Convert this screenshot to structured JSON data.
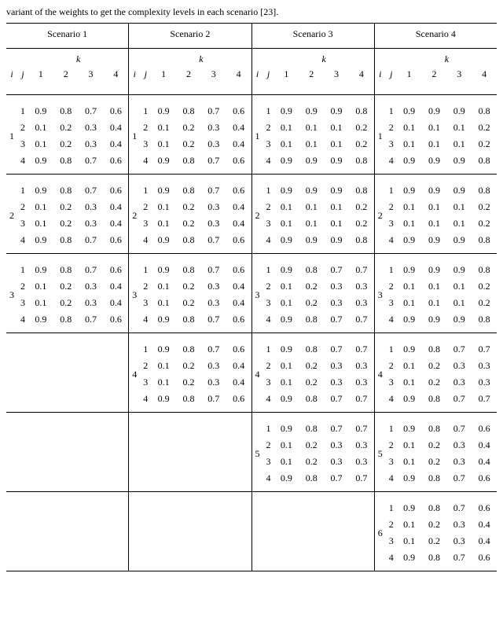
{
  "caption": "variant of the weights to get the complexity levels in each scenario [23].",
  "headers": {
    "i": "i",
    "j": "j",
    "k": "k",
    "k_italic": "k",
    "cols": [
      "1",
      "2",
      "3",
      "4"
    ]
  },
  "scenarios": [
    {
      "title": "Scenario 1",
      "max_i": 3,
      "blocks": [
        {
          "i": "1",
          "rows": [
            [
              "1",
              "0.9",
              "0.8",
              "0.7",
              "0.6"
            ],
            [
              "2",
              "0.1",
              "0.2",
              "0.3",
              "0.4"
            ],
            [
              "3",
              "0.1",
              "0.2",
              "0.3",
              "0.4"
            ],
            [
              "4",
              "0.9",
              "0.8",
              "0.7",
              "0.6"
            ]
          ]
        },
        {
          "i": "2",
          "rows": [
            [
              "1",
              "0.9",
              "0.8",
              "0.7",
              "0.6"
            ],
            [
              "2",
              "0.1",
              "0.2",
              "0.3",
              "0.4"
            ],
            [
              "3",
              "0.1",
              "0.2",
              "0.3",
              "0.4"
            ],
            [
              "4",
              "0.9",
              "0.8",
              "0.7",
              "0.6"
            ]
          ]
        },
        {
          "i": "3",
          "rows": [
            [
              "1",
              "0.9",
              "0.8",
              "0.7",
              "0.6"
            ],
            [
              "2",
              "0.1",
              "0.2",
              "0.3",
              "0.4"
            ],
            [
              "3",
              "0.1",
              "0.2",
              "0.3",
              "0.4"
            ],
            [
              "4",
              "0.9",
              "0.8",
              "0.7",
              "0.6"
            ]
          ]
        }
      ]
    },
    {
      "title": "Scenario 2",
      "max_i": 4,
      "blocks": [
        {
          "i": "1",
          "rows": [
            [
              "1",
              "0.9",
              "0.8",
              "0.7",
              "0.6"
            ],
            [
              "2",
              "0.1",
              "0.2",
              "0.3",
              "0.4"
            ],
            [
              "3",
              "0.1",
              "0.2",
              "0.3",
              "0.4"
            ],
            [
              "4",
              "0.9",
              "0.8",
              "0.7",
              "0.6"
            ]
          ]
        },
        {
          "i": "2",
          "rows": [
            [
              "1",
              "0.9",
              "0.8",
              "0.7",
              "0.6"
            ],
            [
              "2",
              "0.1",
              "0.2",
              "0.3",
              "0.4"
            ],
            [
              "3",
              "0.1",
              "0.2",
              "0.3",
              "0.4"
            ],
            [
              "4",
              "0.9",
              "0.8",
              "0.7",
              "0.6"
            ]
          ]
        },
        {
          "i": "3",
          "rows": [
            [
              "1",
              "0.9",
              "0.8",
              "0.7",
              "0.6"
            ],
            [
              "2",
              "0.1",
              "0.2",
              "0.3",
              "0.4"
            ],
            [
              "3",
              "0.1",
              "0.2",
              "0.3",
              "0.4"
            ],
            [
              "4",
              "0.9",
              "0.8",
              "0.7",
              "0.6"
            ]
          ]
        },
        {
          "i": "4",
          "rows": [
            [
              "1",
              "0.9",
              "0.8",
              "0.7",
              "0.6"
            ],
            [
              "2",
              "0.1",
              "0.2",
              "0.3",
              "0.4"
            ],
            [
              "3",
              "0.1",
              "0.2",
              "0.3",
              "0.4"
            ],
            [
              "4",
              "0.9",
              "0.8",
              "0.7",
              "0.6"
            ]
          ]
        }
      ]
    },
    {
      "title": "Scenario 3",
      "max_i": 5,
      "blocks": [
        {
          "i": "1",
          "rows": [
            [
              "1",
              "0.9",
              "0.9",
              "0.9",
              "0.8"
            ],
            [
              "2",
              "0.1",
              "0.1",
              "0.1",
              "0.2"
            ],
            [
              "3",
              "0.1",
              "0.1",
              "0.1",
              "0.2"
            ],
            [
              "4",
              "0.9",
              "0.9",
              "0.9",
              "0.8"
            ]
          ]
        },
        {
          "i": "2",
          "rows": [
            [
              "1",
              "0.9",
              "0.9",
              "0.9",
              "0.8"
            ],
            [
              "2",
              "0.1",
              "0.1",
              "0.1",
              "0.2"
            ],
            [
              "3",
              "0.1",
              "0.1",
              "0.1",
              "0.2"
            ],
            [
              "4",
              "0.9",
              "0.9",
              "0.9",
              "0.8"
            ]
          ]
        },
        {
          "i": "3",
          "rows": [
            [
              "1",
              "0.9",
              "0.8",
              "0.7",
              "0.7"
            ],
            [
              "2",
              "0.1",
              "0.2",
              "0.3",
              "0.3"
            ],
            [
              "3",
              "0.1",
              "0.2",
              "0.3",
              "0.3"
            ],
            [
              "4",
              "0.9",
              "0.8",
              "0.7",
              "0.7"
            ]
          ]
        },
        {
          "i": "4",
          "rows": [
            [
              "1",
              "0.9",
              "0.8",
              "0.7",
              "0.7"
            ],
            [
              "2",
              "0.1",
              "0.2",
              "0.3",
              "0.3"
            ],
            [
              "3",
              "0.1",
              "0.2",
              "0.3",
              "0.3"
            ],
            [
              "4",
              "0.9",
              "0.8",
              "0.7",
              "0.7"
            ]
          ]
        },
        {
          "i": "5",
          "rows": [
            [
              "1",
              "0.9",
              "0.8",
              "0.7",
              "0.7"
            ],
            [
              "2",
              "0.1",
              "0.2",
              "0.3",
              "0.3"
            ],
            [
              "3",
              "0.1",
              "0.2",
              "0.3",
              "0.3"
            ],
            [
              "4",
              "0.9",
              "0.8",
              "0.7",
              "0.7"
            ]
          ]
        }
      ]
    },
    {
      "title": "Scenario 4",
      "max_i": 6,
      "blocks": [
        {
          "i": "1",
          "rows": [
            [
              "1",
              "0.9",
              "0.9",
              "0.9",
              "0.8"
            ],
            [
              "2",
              "0.1",
              "0.1",
              "0.1",
              "0.2"
            ],
            [
              "3",
              "0.1",
              "0.1",
              "0.1",
              "0.2"
            ],
            [
              "4",
              "0.9",
              "0.9",
              "0.9",
              "0.8"
            ]
          ]
        },
        {
          "i": "2",
          "rows": [
            [
              "1",
              "0.9",
              "0.9",
              "0.9",
              "0.8"
            ],
            [
              "2",
              "0.1",
              "0.1",
              "0.1",
              "0.2"
            ],
            [
              "3",
              "0.1",
              "0.1",
              "0.1",
              "0.2"
            ],
            [
              "4",
              "0.9",
              "0.9",
              "0.9",
              "0.8"
            ]
          ]
        },
        {
          "i": "3",
          "rows": [
            [
              "1",
              "0.9",
              "0.9",
              "0.9",
              "0.8"
            ],
            [
              "2",
              "0.1",
              "0.1",
              "0.1",
              "0.2"
            ],
            [
              "3",
              "0.1",
              "0.1",
              "0.1",
              "0.2"
            ],
            [
              "4",
              "0.9",
              "0.9",
              "0.9",
              "0.8"
            ]
          ]
        },
        {
          "i": "4",
          "rows": [
            [
              "1",
              "0.9",
              "0.8",
              "0.7",
              "0.7"
            ],
            [
              "2",
              "0.1",
              "0.2",
              "0.3",
              "0.3"
            ],
            [
              "3",
              "0.1",
              "0.2",
              "0.3",
              "0.3"
            ],
            [
              "4",
              "0.9",
              "0.8",
              "0.7",
              "0.7"
            ]
          ]
        },
        {
          "i": "5",
          "rows": [
            [
              "1",
              "0.9",
              "0.8",
              "0.7",
              "0.6"
            ],
            [
              "2",
              "0.1",
              "0.2",
              "0.3",
              "0.4"
            ],
            [
              "3",
              "0.1",
              "0.2",
              "0.3",
              "0.4"
            ],
            [
              "4",
              "0.9",
              "0.8",
              "0.7",
              "0.6"
            ]
          ]
        },
        {
          "i": "6",
          "rows": [
            [
              "1",
              "0.9",
              "0.8",
              "0.7",
              "0.6"
            ],
            [
              "2",
              "0.1",
              "0.2",
              "0.3",
              "0.4"
            ],
            [
              "3",
              "0.1",
              "0.2",
              "0.3",
              "0.4"
            ],
            [
              "4",
              "0.9",
              "0.8",
              "0.7",
              "0.6"
            ]
          ]
        }
      ]
    }
  ]
}
